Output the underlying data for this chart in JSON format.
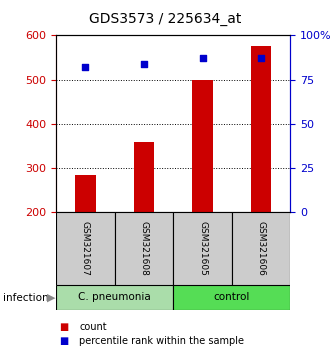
{
  "title": "GDS3573 / 225634_at",
  "samples": [
    "GSM321607",
    "GSM321608",
    "GSM321605",
    "GSM321606"
  ],
  "counts": [
    285,
    360,
    500,
    575
  ],
  "percentiles": [
    82,
    84,
    87,
    87
  ],
  "ylim_left": [
    200,
    600
  ],
  "ylim_right": [
    0,
    100
  ],
  "yticks_left": [
    200,
    300,
    400,
    500,
    600
  ],
  "yticks_right": [
    0,
    25,
    50,
    75,
    100
  ],
  "ytick_labels_right": [
    "0",
    "25",
    "50",
    "75",
    "100%"
  ],
  "groups": [
    {
      "label": "C. pneumonia",
      "indices": [
        0,
        1
      ],
      "color": "#aaddaa"
    },
    {
      "label": "control",
      "indices": [
        2,
        3
      ],
      "color": "#55dd55"
    }
  ],
  "infection_label": "infection",
  "bar_color": "#cc0000",
  "percentile_color": "#0000cc",
  "bar_width": 0.35,
  "grid_lines": [
    300,
    400,
    500
  ],
  "legend_items": [
    {
      "label": "count",
      "color": "#cc0000"
    },
    {
      "label": "percentile rank within the sample",
      "color": "#0000cc"
    }
  ],
  "sample_box_color": "#cccccc",
  "title_fontsize": 10,
  "tick_fontsize": 8,
  "axis_color_left": "#cc0000",
  "axis_color_right": "#0000cc",
  "fig_width": 3.3,
  "fig_height": 3.54,
  "fig_dpi": 100
}
